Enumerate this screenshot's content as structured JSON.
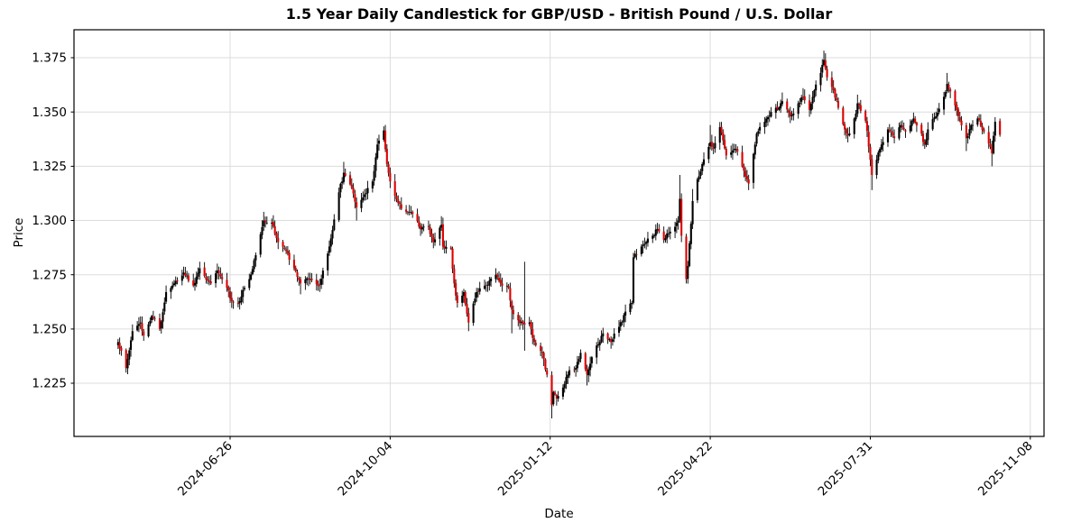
{
  "figure": {
    "title": "1.5 Year Daily Candlestick for GBP/USD - British Pound / U.S. Dollar",
    "xlabel": "Date",
    "ylabel": "Price"
  },
  "chart_data": {
    "type": "candlestick",
    "title": "1.5 Year Daily Candlestick for GBP/USD - British Pound / U.S. Dollar",
    "pair": "GBP/USD",
    "period_label": "1.5 Year",
    "interval": "daily",
    "xlabel": "Date",
    "ylabel": "Price",
    "grid": true,
    "legend": "none",
    "date_range": [
      "2024-04-17",
      "2025-10-20"
    ],
    "x_tick_labels": [
      "2024-06-26",
      "2024-10-04",
      "2025-01-12",
      "2025-04-22",
      "2025-07-31",
      "2025-11-08"
    ],
    "y_ticks": [
      1.225,
      1.25,
      1.275,
      1.3,
      1.325,
      1.35,
      1.375
    ],
    "ylim": [
      1.2005,
      1.3879
    ],
    "extremes": {
      "max_high": 1.3783,
      "max_high_date": "2025-07-02",
      "min_low": 1.2088,
      "min_low_date": "2025-01-13"
    },
    "colors": {
      "up_candle": "#000000",
      "down_candle": "#dd0000",
      "wick": "#000000",
      "grid_line": "#dcdcdc",
      "spine": "#000000",
      "background": "#ffffff",
      "text": "#000000"
    },
    "keyframe_fields": [
      "date",
      "close",
      "high",
      "low"
    ],
    "ohlc_keyframes": [
      [
        "2024-04-17",
        1.244,
        null,
        null
      ],
      [
        "2024-04-22",
        1.232,
        null,
        1.2299
      ],
      [
        "2024-04-26",
        1.249,
        null,
        null
      ],
      [
        "2024-05-01",
        1.253,
        null,
        null
      ],
      [
        "2024-05-03",
        1.247,
        null,
        null
      ],
      [
        "2024-05-08",
        1.256,
        null,
        null
      ],
      [
        "2024-05-13",
        1.25,
        null,
        null
      ],
      [
        "2024-05-17",
        1.267,
        null,
        null
      ],
      [
        "2024-05-22",
        1.271,
        null,
        null
      ],
      [
        "2024-05-28",
        1.276,
        null,
        null
      ],
      [
        "2024-06-03",
        1.27,
        null,
        null
      ],
      [
        "2024-06-07",
        1.278,
        1.281,
        null
      ],
      [
        "2024-06-14",
        1.271,
        null,
        null
      ],
      [
        "2024-06-18",
        1.277,
        null,
        null
      ],
      [
        "2024-06-24",
        1.269,
        null,
        null
      ],
      [
        "2024-06-26",
        1.264,
        null,
        null
      ],
      [
        "2024-07-01",
        1.2615,
        null,
        1.26
      ],
      [
        "2024-07-04",
        1.268,
        null,
        null
      ],
      [
        "2024-07-08",
        1.273,
        null,
        null
      ],
      [
        "2024-07-12",
        1.284,
        null,
        null
      ],
      [
        "2024-07-17",
        1.3,
        1.304,
        null
      ],
      [
        "2024-07-22",
        1.299,
        null,
        null
      ],
      [
        "2024-07-26",
        1.29,
        null,
        null
      ],
      [
        "2024-07-31",
        1.286,
        null,
        null
      ],
      [
        "2024-08-05",
        1.278,
        null,
        null
      ],
      [
        "2024-08-09",
        1.271,
        null,
        1.266
      ],
      [
        "2024-08-15",
        1.273,
        null,
        null
      ],
      [
        "2024-08-21",
        1.27,
        null,
        null
      ],
      [
        "2024-08-27",
        1.288,
        null,
        null
      ],
      [
        "2024-09-02",
        1.313,
        null,
        null
      ],
      [
        "2024-09-05",
        1.322,
        1.327,
        null
      ],
      [
        "2024-09-10",
        1.315,
        null,
        null
      ],
      [
        "2024-09-13",
        1.306,
        null,
        1.3
      ],
      [
        "2024-09-18",
        1.312,
        null,
        null
      ],
      [
        "2024-09-23",
        1.318,
        null,
        null
      ],
      [
        "2024-09-26",
        1.335,
        null,
        null
      ],
      [
        "2024-09-30",
        1.3415,
        1.3434,
        null
      ],
      [
        "2024-10-02",
        1.326,
        null,
        null
      ],
      [
        "2024-10-04",
        1.318,
        null,
        null
      ],
      [
        "2024-10-09",
        1.308,
        null,
        null
      ],
      [
        "2024-10-14",
        1.304,
        null,
        null
      ],
      [
        "2024-10-18",
        1.303,
        null,
        null
      ],
      [
        "2024-10-23",
        1.296,
        null,
        null
      ],
      [
        "2024-10-28",
        1.297,
        null,
        null
      ],
      [
        "2024-10-31",
        1.29,
        null,
        null
      ],
      [
        "2024-11-05",
        1.298,
        1.302,
        null
      ],
      [
        "2024-11-06",
        1.288,
        null,
        null
      ],
      [
        "2024-11-11",
        1.287,
        null,
        null
      ],
      [
        "2024-11-13",
        1.271,
        null,
        null
      ],
      [
        "2024-11-15",
        1.262,
        null,
        null
      ],
      [
        "2024-11-19",
        1.267,
        null,
        null
      ],
      [
        "2024-11-22",
        1.253,
        null,
        1.249
      ],
      [
        "2024-11-27",
        1.267,
        null,
        null
      ],
      [
        "2024-12-03",
        1.27,
        null,
        null
      ],
      [
        "2024-12-09",
        1.275,
        1.278,
        null
      ],
      [
        "2024-12-12",
        1.271,
        null,
        null
      ],
      [
        "2024-12-17",
        1.269,
        null,
        null
      ],
      [
        "2024-12-19",
        1.259,
        null,
        1.248
      ],
      [
        "2024-12-23",
        1.254,
        null,
        null
      ],
      [
        "2024-12-27",
        1.252,
        1.281,
        1.24
      ],
      [
        "2024-12-30",
        1.253,
        null,
        null
      ],
      [
        "2025-01-02",
        1.244,
        null,
        null
      ],
      [
        "2025-01-07",
        1.239,
        null,
        null
      ],
      [
        "2025-01-10",
        1.229,
        null,
        null
      ],
      [
        "2025-01-13",
        1.215,
        null,
        1.2088
      ],
      [
        "2025-01-14",
        1.221,
        null,
        null
      ],
      [
        "2025-01-16",
        1.218,
        null,
        null
      ],
      [
        "2025-01-20",
        1.223,
        null,
        null
      ],
      [
        "2025-01-24",
        1.231,
        null,
        null
      ],
      [
        "2025-01-28",
        1.232,
        null,
        null
      ],
      [
        "2025-01-31",
        1.239,
        null,
        null
      ],
      [
        "2025-02-04",
        1.229,
        null,
        1.224
      ],
      [
        "2025-02-07",
        1.237,
        null,
        null
      ],
      [
        "2025-02-12",
        1.244,
        null,
        null
      ],
      [
        "2025-02-14",
        1.248,
        null,
        null
      ],
      [
        "2025-02-19",
        1.244,
        null,
        null
      ],
      [
        "2025-02-24",
        1.251,
        null,
        null
      ],
      [
        "2025-02-28",
        1.258,
        null,
        null
      ],
      [
        "2025-03-04",
        1.262,
        null,
        null
      ],
      [
        "2025-03-05",
        1.283,
        null,
        null
      ],
      [
        "2025-03-10",
        1.288,
        null,
        null
      ],
      [
        "2025-03-17",
        1.293,
        null,
        null
      ],
      [
        "2025-03-20",
        1.296,
        null,
        null
      ],
      [
        "2025-03-24",
        1.291,
        null,
        null
      ],
      [
        "2025-03-27",
        1.294,
        null,
        null
      ],
      [
        "2025-04-02",
        1.3,
        1.302,
        null
      ],
      [
        "2025-04-03",
        1.31,
        1.321,
        null
      ],
      [
        "2025-04-04",
        1.293,
        null,
        null
      ],
      [
        "2025-04-07",
        1.273,
        null,
        1.271
      ],
      [
        "2025-04-08",
        1.279,
        null,
        null
      ],
      [
        "2025-04-11",
        1.309,
        1.3145,
        null
      ],
      [
        "2025-04-14",
        1.319,
        null,
        null
      ],
      [
        "2025-04-17",
        1.326,
        null,
        null
      ],
      [
        "2025-04-22",
        1.336,
        1.344,
        null
      ],
      [
        "2025-04-24",
        1.333,
        null,
        null
      ],
      [
        "2025-04-28",
        1.343,
        null,
        null
      ],
      [
        "2025-05-02",
        1.33,
        null,
        null
      ],
      [
        "2025-05-08",
        1.333,
        null,
        null
      ],
      [
        "2025-05-13",
        1.323,
        null,
        null
      ],
      [
        "2025-05-16",
        1.317,
        null,
        1.314
      ],
      [
        "2025-05-21",
        1.34,
        null,
        null
      ],
      [
        "2025-05-27",
        1.347,
        null,
        null
      ],
      [
        "2025-05-30",
        1.35,
        null,
        null
      ],
      [
        "2025-06-04",
        1.352,
        null,
        null
      ],
      [
        "2025-06-06",
        1.355,
        1.359,
        null
      ],
      [
        "2025-06-11",
        1.348,
        null,
        null
      ],
      [
        "2025-06-16",
        1.354,
        null,
        null
      ],
      [
        "2025-06-19",
        1.357,
        1.361,
        null
      ],
      [
        "2025-06-23",
        1.351,
        null,
        null
      ],
      [
        "2025-06-26",
        1.36,
        null,
        null
      ],
      [
        "2025-06-30",
        1.368,
        null,
        null
      ],
      [
        "2025-07-02",
        1.374,
        1.3783,
        null
      ],
      [
        "2025-07-04",
        1.366,
        null,
        null
      ],
      [
        "2025-07-08",
        1.36,
        null,
        null
      ],
      [
        "2025-07-11",
        1.352,
        null,
        null
      ],
      [
        "2025-07-15",
        1.342,
        null,
        null
      ],
      [
        "2025-07-17",
        1.339,
        null,
        1.336
      ],
      [
        "2025-07-21",
        1.347,
        null,
        null
      ],
      [
        "2025-07-23",
        1.354,
        1.358,
        null
      ],
      [
        "2025-07-28",
        1.346,
        null,
        null
      ],
      [
        "2025-07-30",
        1.334,
        null,
        null
      ],
      [
        "2025-08-01",
        1.321,
        null,
        1.314
      ],
      [
        "2025-08-04",
        1.328,
        null,
        null
      ],
      [
        "2025-08-07",
        1.335,
        null,
        null
      ],
      [
        "2025-08-11",
        1.342,
        null,
        null
      ],
      [
        "2025-08-15",
        1.338,
        null,
        null
      ],
      [
        "2025-08-19",
        1.344,
        null,
        null
      ],
      [
        "2025-08-22",
        1.341,
        null,
        null
      ],
      [
        "2025-08-27",
        1.347,
        null,
        null
      ],
      [
        "2025-09-01",
        1.34,
        null,
        null
      ],
      [
        "2025-09-03",
        1.335,
        null,
        1.333
      ],
      [
        "2025-09-05",
        1.342,
        null,
        null
      ],
      [
        "2025-09-10",
        1.348,
        null,
        null
      ],
      [
        "2025-09-15",
        1.357,
        null,
        null
      ],
      [
        "2025-09-17",
        1.363,
        1.368,
        null
      ],
      [
        "2025-09-22",
        1.353,
        null,
        null
      ],
      [
        "2025-09-25",
        1.346,
        null,
        null
      ],
      [
        "2025-09-29",
        1.338,
        null,
        1.332
      ],
      [
        "2025-10-02",
        1.344,
        null,
        null
      ],
      [
        "2025-10-06",
        1.347,
        null,
        null
      ],
      [
        "2025-10-10",
        1.341,
        null,
        null
      ],
      [
        "2025-10-14",
        1.334,
        null,
        null
      ],
      [
        "2025-10-15",
        1.331,
        null,
        1.325
      ],
      [
        "2025-10-16",
        1.339,
        null,
        null
      ],
      [
        "2025-10-17",
        1.3455,
        null,
        null
      ],
      [
        "2025-10-20",
        1.3395,
        1.347,
        null
      ]
    ]
  }
}
